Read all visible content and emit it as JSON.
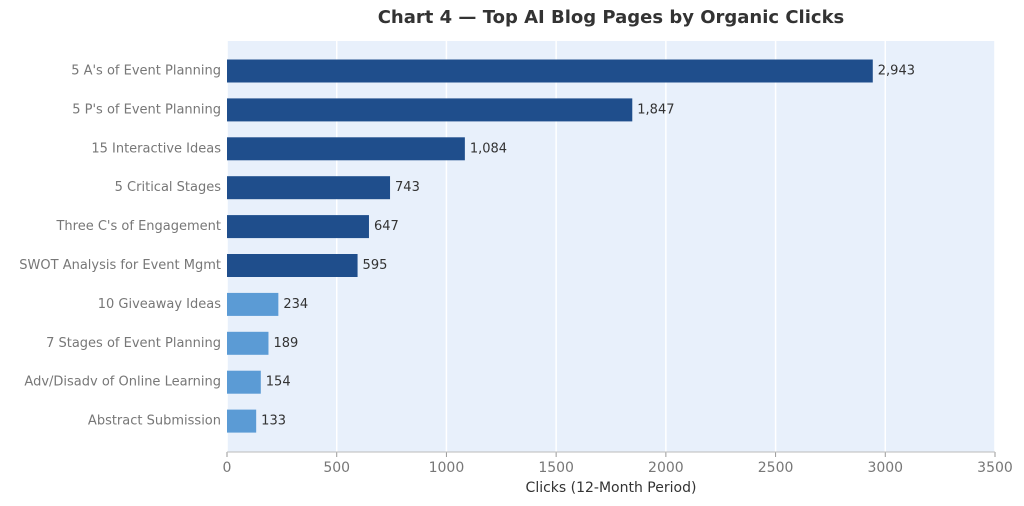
{
  "chart_data": {
    "type": "barh",
    "title": "Chart 4 — Top AI Blog Pages by Organic Clicks",
    "xlabel": "Clicks (12-Month Period)",
    "categories": [
      "5 A's of Event Planning",
      "5 P's of Event Planning",
      "15 Interactive Ideas",
      "5 Critical Stages",
      "Three C's of Engagement",
      "SWOT Analysis for Event Mgmt",
      "10 Giveaway Ideas",
      "7 Stages of Event Planning",
      "Adv/Disadv of Online Learning",
      "Abstract Submission"
    ],
    "values": [
      2943,
      1847,
      1084,
      743,
      647,
      595,
      234,
      189,
      154,
      133
    ],
    "value_labels": [
      "2,943",
      "1,847",
      "1,084",
      "743",
      "647",
      "595",
      "234",
      "189",
      "154",
      "133"
    ],
    "colors": [
      "#1f4e8c",
      "#1f4e8c",
      "#1f4e8c",
      "#1f4e8c",
      "#1f4e8c",
      "#1f4e8c",
      "#5b9bd5",
      "#5b9bd5",
      "#5b9bd5",
      "#5b9bd5"
    ],
    "xlim": [
      0,
      3500
    ],
    "xticks": [
      0,
      500,
      1000,
      1500,
      2000,
      2500,
      3000,
      3500
    ],
    "grid": true,
    "background": "#e8f0fb"
  }
}
